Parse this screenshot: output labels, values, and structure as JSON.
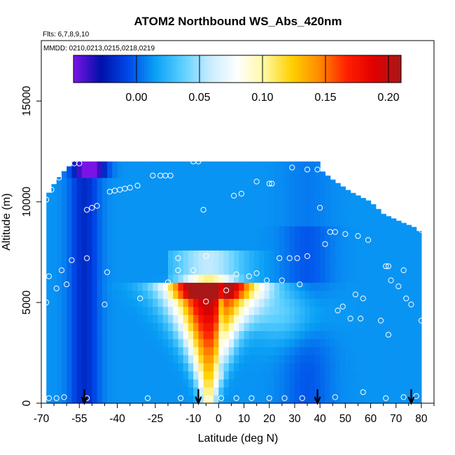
{
  "chart_data": {
    "type": "heatmap",
    "title": "ATOM2 Northbound WS_Abs_420nm",
    "flights_label": "Flts: 6,7,8,9,10",
    "dates_label": "MMDD: 0210,0213,0215,0218,0219",
    "xlabel": "Latitude (deg N)",
    "ylabel": "Altitude (m)",
    "xlim": [
      -70,
      85
    ],
    "ylim": [
      0,
      18000
    ],
    "x_ticks": [
      -70,
      -55,
      -40,
      -25,
      -10,
      0,
      10,
      20,
      30,
      40,
      50,
      60,
      70,
      80
    ],
    "y_ticks": [
      0,
      5000,
      10000,
      15000
    ],
    "colorbar": {
      "range": [
        -0.05,
        0.21
      ],
      "ticks": [
        0.0,
        0.05,
        0.1,
        0.15,
        0.2
      ],
      "tick_labels": [
        "0.00",
        "0.05",
        "0.10",
        "0.15",
        "0.20"
      ],
      "colors": [
        "#7a14e6",
        "#0010a8",
        "#0048e8",
        "#0aa0f5",
        "#5cd0ff",
        "#c8ecff",
        "#ffffff",
        "#fff8a0",
        "#ffd000",
        "#ff8a00",
        "#ff2000",
        "#e00000",
        "#a81818"
      ]
    },
    "data_grid": {
      "lat_range": [
        -68,
        80
      ],
      "alt_range": [
        0,
        12000
      ],
      "profile_tops": [
        [
          -68,
          10200
        ],
        [
          -66,
          10700
        ],
        [
          -62,
          11400
        ],
        [
          -57,
          12000
        ],
        [
          -30,
          12000
        ],
        [
          40,
          12000
        ],
        [
          41,
          11500
        ],
        [
          45,
          11100
        ],
        [
          52,
          10500
        ],
        [
          60,
          10000
        ],
        [
          65,
          9400
        ],
        [
          72,
          9000
        ],
        [
          78,
          8700
        ],
        [
          80,
          8400
        ]
      ],
      "plume": {
        "peak_lat": -4,
        "peak_value": 0.21,
        "top_alt": 6000,
        "note": "absorption maximum near the equator below 6000 m"
      }
    },
    "sample_points": [
      [
        -67,
        250
      ],
      [
        -64,
        250
      ],
      [
        -61,
        300
      ],
      [
        -52,
        250
      ],
      [
        -28,
        250
      ],
      [
        -15,
        250
      ],
      [
        -4,
        250
      ],
      [
        1,
        250
      ],
      [
        7,
        250
      ],
      [
        13,
        250
      ],
      [
        20,
        250
      ],
      [
        26,
        250
      ],
      [
        33,
        250
      ],
      [
        46,
        300
      ],
      [
        57,
        550
      ],
      [
        66,
        250
      ],
      [
        73,
        300
      ],
      [
        78,
        350
      ],
      [
        -68,
        5000
      ],
      [
        -67,
        6300
      ],
      [
        -64,
        5700
      ],
      [
        -62,
        6600
      ],
      [
        -60,
        5900
      ],
      [
        -58,
        7100
      ],
      [
        -52,
        7200
      ],
      [
        -45,
        4900
      ],
      [
        -44,
        6500
      ],
      [
        -31,
        5200
      ],
      [
        -20,
        6000
      ],
      [
        -16,
        6600
      ],
      [
        -10,
        6600
      ],
      [
        -5,
        5050
      ],
      [
        3,
        5600
      ],
      [
        7,
        6400
      ],
      [
        12,
        6300
      ],
      [
        15,
        6450
      ],
      [
        19,
        6100
      ],
      [
        25,
        6100
      ],
      [
        28,
        7200
      ],
      [
        32,
        5900
      ],
      [
        35,
        7300
      ],
      [
        47,
        4600
      ],
      [
        49,
        4800
      ],
      [
        52,
        4200
      ],
      [
        54,
        5400
      ],
      [
        56,
        4200
      ],
      [
        57,
        5200
      ],
      [
        64,
        4100
      ],
      [
        66,
        6800
      ],
      [
        67,
        6800
      ],
      [
        67,
        3400
      ],
      [
        68,
        6100
      ],
      [
        71,
        5800
      ],
      [
        73,
        6600
      ],
      [
        74,
        5200
      ],
      [
        76,
        4900
      ],
      [
        80,
        4100
      ],
      [
        -68,
        10100
      ],
      [
        -66,
        10600
      ],
      [
        -63,
        11200
      ],
      [
        -57,
        11900
      ],
      [
        -55,
        11900
      ],
      [
        -52,
        9600
      ],
      [
        -50,
        9700
      ],
      [
        -48,
        9800
      ],
      [
        -43,
        10500
      ],
      [
        -41,
        10550
      ],
      [
        -39,
        10600
      ],
      [
        -37,
        10650
      ],
      [
        -35,
        10700
      ],
      [
        -32,
        10800
      ],
      [
        -26,
        11300
      ],
      [
        -23,
        11300
      ],
      [
        -21,
        11300
      ],
      [
        -19,
        11300
      ],
      [
        -16,
        7200
      ],
      [
        -10,
        12000
      ],
      [
        -8,
        12000
      ],
      [
        -6,
        9600
      ],
      [
        -5,
        7300
      ],
      [
        6,
        10300
      ],
      [
        9,
        10400
      ],
      [
        15,
        11000
      ],
      [
        20,
        10900
      ],
      [
        21,
        10900
      ],
      [
        24,
        7200
      ],
      [
        29,
        11700
      ],
      [
        31,
        7200
      ],
      [
        35,
        11600
      ],
      [
        39,
        11600
      ],
      [
        40,
        9700
      ],
      [
        44,
        8500
      ],
      [
        46,
        8500
      ],
      [
        42,
        7900
      ],
      [
        50,
        8400
      ],
      [
        55,
        8300
      ],
      [
        59,
        8100
      ],
      [
        71,
        9400
      ],
      [
        75,
        9200
      ],
      [
        80,
        8600
      ]
    ],
    "arrows_at_lat": [
      -53,
      -8,
      39,
      76
    ]
  }
}
